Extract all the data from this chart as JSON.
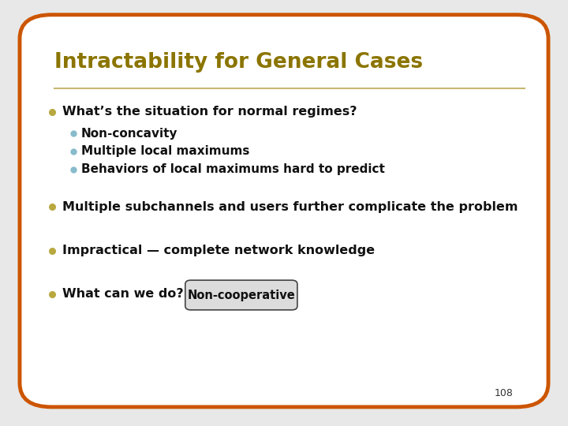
{
  "title": "Intractability for General Cases",
  "title_color": "#8B7500",
  "title_fontsize": 19,
  "background_color": "#FFFFFF",
  "border_color": "#CC5500",
  "border_linewidth": 3.5,
  "separator_color": "#C8B870",
  "bullet_color_outer": "#B8A840",
  "bullet_color_inner": "#88BBCC",
  "text_color": "#111111",
  "bullet1_main": "What’s the situation for normal regimes?",
  "bullet1_subs": [
    "Non-concavity",
    "Multiple local maximums",
    "Behaviors of local maximums hard to predict"
  ],
  "bullet2": "Multiple subchannels and users further complicate the problem",
  "bullet3": "Impractical — complete network knowledge",
  "bullet4": "What can we do?",
  "box_label": "Non-cooperative",
  "box_facecolor": "#DCDCDC",
  "box_edgecolor": "#444444",
  "page_number": "108",
  "font_family": "DejaVu Sans",
  "main_fontsize": 11.5,
  "sub_fontsize": 11,
  "fig_bg": "#E8E8E8"
}
